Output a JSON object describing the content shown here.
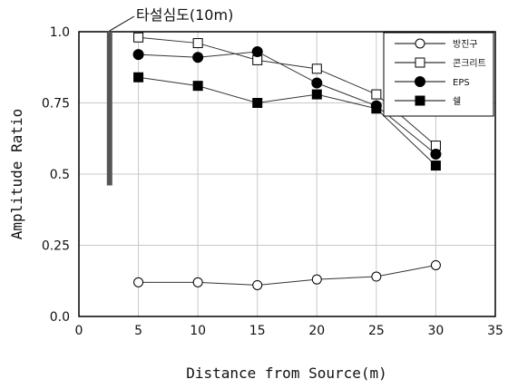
{
  "chart_data": {
    "type": "line",
    "xlabel": "Distance from Source(m)",
    "ylabel": "Amplitude Ratio",
    "xlim": [
      0,
      35
    ],
    "ylim": [
      0.0,
      1.0
    ],
    "x_ticks": [
      "0",
      "5",
      "10",
      "15",
      "20",
      "25",
      "30",
      "35"
    ],
    "y_ticks": [
      "0.0",
      "0.25",
      "0.5",
      "0.75",
      "1.0"
    ],
    "grid": true,
    "legend_position": "top-right",
    "x": [
      5,
      10,
      15,
      20,
      25,
      30
    ],
    "series": [
      {
        "name": "방진구",
        "marker": "circle-open",
        "values": [
          0.12,
          0.12,
          0.11,
          0.13,
          0.14,
          0.18
        ]
      },
      {
        "name": "콘크리트",
        "marker": "square-open",
        "values": [
          0.98,
          0.96,
          0.9,
          0.87,
          0.78,
          0.6
        ]
      },
      {
        "name": "EPS",
        "marker": "circle-filled",
        "values": [
          0.92,
          0.91,
          0.93,
          0.82,
          0.74,
          0.57
        ]
      },
      {
        "name": "쉘",
        "marker": "square-filled",
        "values": [
          0.84,
          0.81,
          0.75,
          0.78,
          0.73,
          0.53
        ]
      }
    ],
    "annotation": {
      "text": "타설심도(10m)",
      "bar_x": 2.5,
      "bar_y_range": [
        0.46,
        1.0
      ]
    },
    "colors": {
      "line": "#333333",
      "marker": "#000000",
      "bar": "#555555",
      "grid": "#c8c8c8"
    }
  }
}
